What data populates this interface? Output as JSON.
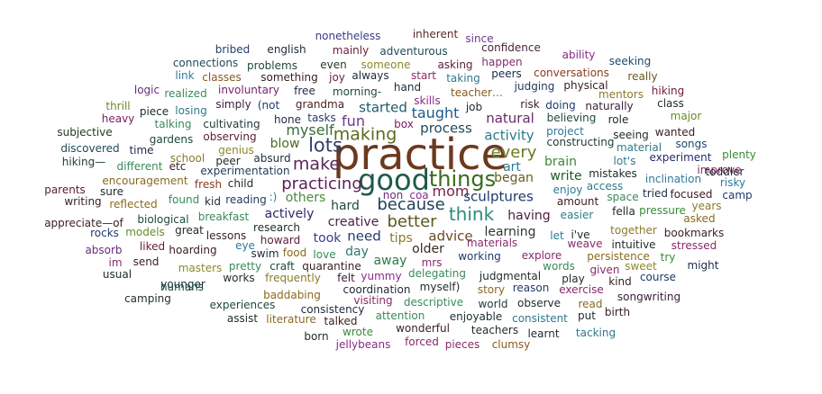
{
  "words": [
    {
      "text": "practice",
      "color": "#6b3a1e"
    },
    {
      "text": "good",
      "color": "#1e5a4a"
    },
    {
      "text": "things",
      "color": "#3a6b1e"
    },
    {
      "text": "lots",
      "color": "#2f3f6b"
    },
    {
      "text": "make",
      "color": "#5a2a5a"
    },
    {
      "text": "making",
      "color": "#5a6b1e"
    },
    {
      "text": "practicing",
      "color": "#5a1e5a"
    },
    {
      "text": "every",
      "color": "#6b7a1e"
    },
    {
      "text": "because",
      "color": "#1e3f5a"
    },
    {
      "text": "better",
      "color": "#5a5a1e"
    },
    {
      "text": "think",
      "color": "#2e8a7a"
    },
    {
      "text": "myself",
      "color": "#3a6b3a"
    },
    {
      "text": "process",
      "color": "#1e4a5a"
    },
    {
      "text": "taught",
      "color": "#1e5a8a"
    },
    {
      "text": "natural",
      "color": "#6a2a6a"
    },
    {
      "text": "fun",
      "color": "#6a3a8a"
    },
    {
      "text": "mom",
      "color": "#7a1e4a"
    },
    {
      "text": "activity",
      "color": "#2e7a8a"
    },
    {
      "text": "blow",
      "color": "#4a6b1e"
    },
    {
      "text": "sculptures",
      "color": "#1e3a6b"
    },
    {
      "text": "brain",
      "color": "#3a8a3a"
    },
    {
      "text": "started",
      "color": "#1e5a6b"
    },
    {
      "text": "having",
      "color": "#4a1e3a"
    },
    {
      "text": "write",
      "color": "#1e5a2a"
    },
    {
      "text": "hard",
      "color": "#1e4a3a"
    },
    {
      "text": "need",
      "color": "#1e3f6b"
    },
    {
      "text": "creative",
      "color": "#4a1e4a"
    },
    {
      "text": "learning",
      "color": "#2a3a2a"
    },
    {
      "text": "advice",
      "color": "#6b4a1e"
    },
    {
      "text": "actively",
      "color": "#2a2a6b"
    },
    {
      "text": "others",
      "color": "#4a8a3a"
    },
    {
      "text": "took",
      "color": "#3a3a8a"
    },
    {
      "text": "tips",
      "color": "#8a7a2a"
    },
    {
      "text": "away",
      "color": "#2e7a4a"
    },
    {
      "text": "began",
      "color": "#6b5a1e"
    },
    {
      "text": "older",
      "color": "#3a2a1e"
    },
    {
      "text": "day",
      "color": "#2e7a6b"
    },
    {
      "text": "art",
      "color": "#2e7a9a"
    },
    {
      "text": "nonetheless",
      "color": "#3a3a8a"
    },
    {
      "text": "inherent",
      "color": "#5a2a2a"
    },
    {
      "text": "since",
      "color": "#6a3a8a"
    },
    {
      "text": "bribed",
      "color": "#1e3f6b"
    },
    {
      "text": "english",
      "color": "#1e2a3a"
    },
    {
      "text": "mainly",
      "color": "#6b1e3a"
    },
    {
      "text": "adventurous",
      "color": "#1e4a5a"
    },
    {
      "text": "confidence",
      "color": "#4a1e3a"
    },
    {
      "text": "ability",
      "color": "#8a2a8a"
    },
    {
      "text": "connections",
      "color": "#1e4a5a"
    },
    {
      "text": "problems",
      "color": "#1e4a3a"
    },
    {
      "text": "even",
      "color": "#2a3a1e"
    },
    {
      "text": "someone",
      "color": "#8a8a2a"
    },
    {
      "text": "asking",
      "color": "#5a1e3a"
    },
    {
      "text": "happen",
      "color": "#8a2a6a"
    },
    {
      "text": "seeking",
      "color": "#1e4a6b"
    },
    {
      "text": "link",
      "color": "#2e7a9a"
    },
    {
      "text": "classes",
      "color": "#8a5a1e"
    },
    {
      "text": "something",
      "color": "#3a1e1e"
    },
    {
      "text": "joy",
      "color": "#6b1e4a"
    },
    {
      "text": "always",
      "color": "#1e2a3a"
    },
    {
      "text": "start",
      "color": "#8a2a6a"
    },
    {
      "text": "taking",
      "color": "#2e7a8a"
    },
    {
      "text": "peers",
      "color": "#1e2a4a"
    },
    {
      "text": "conversations",
      "color": "#8a3a1e"
    },
    {
      "text": "really",
      "color": "#6b5a1e"
    },
    {
      "text": "logic",
      "color": "#6a2a7a"
    },
    {
      "text": "realized",
      "color": "#3a8a5a"
    },
    {
      "text": "involuntary",
      "color": "#7a1e6a"
    },
    {
      "text": "free",
      "color": "#1e2a4a"
    },
    {
      "text": "morning-",
      "color": "#1e4a3a"
    },
    {
      "text": "hand",
      "color": "#1e2a3a"
    },
    {
      "text": "teacher…",
      "color": "#8a5a1e"
    },
    {
      "text": "judging",
      "color": "#1e3a5a"
    },
    {
      "text": "physical",
      "color": "#3a1e1e"
    },
    {
      "text": "mentors",
      "color": "#8a7a2a"
    },
    {
      "text": "hiking",
      "color": "#6a1e3a"
    },
    {
      "text": "simply",
      "color": "#3a1e3a"
    },
    {
      "text": "(not",
      "color": "#1e3a6b"
    },
    {
      "text": "grandma",
      "color": "#4a1e1e"
    },
    {
      "text": "skills",
      "color": "#8a2a8a"
    },
    {
      "text": "job",
      "color": "#1e2a2a"
    },
    {
      "text": "risk",
      "color": "#3a1e1e"
    },
    {
      "text": "doing",
      "color": "#1e3a6b"
    },
    {
      "text": "naturally",
      "color": "#3a1e3a"
    },
    {
      "text": "class",
      "color": "#1e2a2a"
    },
    {
      "text": "thrill",
      "color": "#6a8a2a"
    },
    {
      "text": "piece",
      "color": "#1e2a2a"
    },
    {
      "text": "losing",
      "color": "#2e7a8a"
    },
    {
      "text": "tasks",
      "color": "#2a3a6b"
    },
    {
      "text": "heavy",
      "color": "#7a1e5a"
    },
    {
      "text": "talking",
      "color": "#3a8a5a"
    },
    {
      "text": "cultivating",
      "color": "#1e3a3a"
    },
    {
      "text": "hone",
      "color": "#1e2a4a"
    },
    {
      "text": "box",
      "color": "#7a1e5a"
    },
    {
      "text": "believing",
      "color": "#1e4a3a"
    },
    {
      "text": "role",
      "color": "#1e2a2a"
    },
    {
      "text": "major",
      "color": "#6a8a2a"
    },
    {
      "text": "subjective",
      "color": "#1e3a1e"
    },
    {
      "text": "gardens",
      "color": "#1e4a3a"
    },
    {
      "text": "observing",
      "color": "#5a1e3a"
    },
    {
      "text": "project",
      "color": "#2e7a9a"
    },
    {
      "text": "seeing",
      "color": "#1e2a2a"
    },
    {
      "text": "wanted",
      "color": "#3a1e1e"
    },
    {
      "text": "discovered",
      "color": "#1e4a5a"
    },
    {
      "text": "time",
      "color": "#1e2a4a"
    },
    {
      "text": "genius",
      "color": "#8a8a2a"
    },
    {
      "text": "absurd",
      "color": "#1e2a3a"
    },
    {
      "text": "constructing",
      "color": "#1e3a3a"
    },
    {
      "text": "material",
      "color": "#2e7a8a"
    },
    {
      "text": "songs",
      "color": "#1e4a6b"
    },
    {
      "text": "plenty",
      "color": "#3a8a3a"
    },
    {
      "text": "hiking—",
      "color": "#1e3a3a"
    },
    {
      "text": "school",
      "color": "#8a7a2a"
    },
    {
      "text": "peer",
      "color": "#1e2a2a"
    },
    {
      "text": "lot's",
      "color": "#2e7a9a"
    },
    {
      "text": "experiment",
      "color": "#2a2a6b"
    },
    {
      "text": "improve",
      "color": "#8a2a6a"
    },
    {
      "text": "different",
      "color": "#3a8a5a"
    },
    {
      "text": "etc",
      "color": "#3a1e1e"
    },
    {
      "text": "experimentation",
      "color": "#1e3a5a"
    },
    {
      "text": "mistakes",
      "color": "#1e2a2a"
    },
    {
      "text": "toddler",
      "color": "#1e2a2a"
    },
    {
      "text": "encouragement",
      "color": "#8a6a1e"
    },
    {
      "text": "inclination",
      "color": "#2e7a9a"
    },
    {
      "text": "parents",
      "color": "#5a1e3a"
    },
    {
      "text": "sure",
      "color": "#1e2a2a"
    },
    {
      "text": "fresh",
      "color": "#8a3a1e"
    },
    {
      "text": "child",
      "color": "#1e2a2a"
    },
    {
      "text": ":)",
      "color": "#2e7a9a"
    },
    {
      "text": "coa",
      "color": "#8a2a8a"
    },
    {
      "text": "enjoy",
      "color": "#2e7a9a"
    },
    {
      "text": "access",
      "color": "#2e7a8a"
    },
    {
      "text": "risky",
      "color": "#2e7a9a"
    },
    {
      "text": "writing",
      "color": "#3a1e1e"
    },
    {
      "text": "reflected",
      "color": "#8a6a1e"
    },
    {
      "text": "found",
      "color": "#3a8a5a"
    },
    {
      "text": "kid",
      "color": "#1e2a3a"
    },
    {
      "text": "reading",
      "color": "#1e3a5a"
    },
    {
      "text": "non",
      "color": "#6a2a7a"
    },
    {
      "text": "amount",
      "color": "#3a1e1e"
    },
    {
      "text": "space",
      "color": "#3a8a5a"
    },
    {
      "text": "tried",
      "color": "#1e2a4a"
    },
    {
      "text": "focused",
      "color": "#3a1e1e"
    },
    {
      "text": "camp",
      "color": "#1e3a6b"
    },
    {
      "text": "years",
      "color": "#8a7a2a"
    },
    {
      "text": "appreciate—of",
      "color": "#3a1e1e"
    },
    {
      "text": "biological",
      "color": "#1e4a3a"
    },
    {
      "text": "breakfast",
      "color": "#3a8a5a"
    },
    {
      "text": "research",
      "color": "#1e2a2a"
    },
    {
      "text": "easier",
      "color": "#2e7a8a"
    },
    {
      "text": "fella",
      "color": "#1e2a2a"
    },
    {
      "text": "pressure",
      "color": "#3a8a3a"
    },
    {
      "text": "asked",
      "color": "#8a6a1e"
    },
    {
      "text": "rocks",
      "color": "#1e3a6b"
    },
    {
      "text": "models",
      "color": "#6a8a2a"
    },
    {
      "text": "great",
      "color": "#1e2a2a"
    },
    {
      "text": "lessons",
      "color": "#3a1e1e"
    },
    {
      "text": "howard",
      "color": "#5a1e3a"
    },
    {
      "text": "let",
      "color": "#2e7a9a"
    },
    {
      "text": "i've",
      "color": "#1e2a2a"
    },
    {
      "text": "together",
      "color": "#8a7a2a"
    },
    {
      "text": "bookmarks",
      "color": "#3a1e1e"
    },
    {
      "text": "absorb",
      "color": "#6a2a7a"
    },
    {
      "text": "liked",
      "color": "#6a1e3a"
    },
    {
      "text": "hoarding",
      "color": "#3a1e1e"
    },
    {
      "text": "eye",
      "color": "#2e7a9a"
    },
    {
      "text": "swim",
      "color": "#1e2a3a"
    },
    {
      "text": "food",
      "color": "#8a6a1e"
    },
    {
      "text": "love",
      "color": "#3a8a5a"
    },
    {
      "text": "materials",
      "color": "#8a2a6a"
    },
    {
      "text": "weave",
      "color": "#8a2a6a"
    },
    {
      "text": "intuitive",
      "color": "#1e2a2a"
    },
    {
      "text": "stressed",
      "color": "#8a2a6a"
    },
    {
      "text": "im",
      "color": "#8a2a6a"
    },
    {
      "text": "send",
      "color": "#3a1e1e"
    },
    {
      "text": "pretty",
      "color": "#3a8a5a"
    },
    {
      "text": "craft",
      "color": "#1e4a3a"
    },
    {
      "text": "quarantine",
      "color": "#3a1e1e"
    },
    {
      "text": "mrs",
      "color": "#8a2a6a"
    },
    {
      "text": "working",
      "color": "#1e3a6b"
    },
    {
      "text": "explore",
      "color": "#8a2a6a"
    },
    {
      "text": "persistence",
      "color": "#8a6a1e"
    },
    {
      "text": "try",
      "color": "#3a8a3a"
    },
    {
      "text": "usual",
      "color": "#1e2a2a"
    },
    {
      "text": "masters",
      "color": "#8a8a2a"
    },
    {
      "text": "works",
      "color": "#1e2a2a"
    },
    {
      "text": "yummy",
      "color": "#8a2a8a"
    },
    {
      "text": "words",
      "color": "#3a8a5a"
    },
    {
      "text": "given",
      "color": "#8a2a6a"
    },
    {
      "text": "sweet",
      "color": "#8a8a2a"
    },
    {
      "text": "might",
      "color": "#1e2a4a"
    },
    {
      "text": "younger",
      "color": "#1e2a4a"
    },
    {
      "text": "frequently",
      "color": "#8a7a2a"
    },
    {
      "text": "delegating",
      "color": "#3a8a5a"
    },
    {
      "text": "judgmental",
      "color": "#1e2a2a"
    },
    {
      "text": "play",
      "color": "#1e2a2a"
    },
    {
      "text": "course",
      "color": "#1e3a6b"
    },
    {
      "text": "humans",
      "color": "#1e4a3a"
    },
    {
      "text": "felt",
      "color": "#3a1e3a"
    },
    {
      "text": "myself)",
      "color": "#1e2a2a"
    },
    {
      "text": "story",
      "color": "#8a6a1e"
    },
    {
      "text": "reason",
      "color": "#1e3a6b"
    },
    {
      "text": "exercise",
      "color": "#8a2a6a"
    },
    {
      "text": "kind",
      "color": "#3a1e1e"
    },
    {
      "text": "camping",
      "color": "#1e2a2a"
    },
    {
      "text": "baddabing",
      "color": "#8a6a1e"
    },
    {
      "text": "coordination",
      "color": "#1e2a3a"
    },
    {
      "text": "songwriting",
      "color": "#3a1e3a"
    },
    {
      "text": "experiences",
      "color": "#1e4a3a"
    },
    {
      "text": "consistency",
      "color": "#1e2a3a"
    },
    {
      "text": "visiting",
      "color": "#8a2a6a"
    },
    {
      "text": "descriptive",
      "color": "#3a8a5a"
    },
    {
      "text": "world",
      "color": "#1e3a3a"
    },
    {
      "text": "observe",
      "color": "#1e2a2a"
    },
    {
      "text": "read",
      "color": "#8a6a1e"
    },
    {
      "text": "birth",
      "color": "#3a1e1e"
    },
    {
      "text": "assist",
      "color": "#1e2a2a"
    },
    {
      "text": "literature",
      "color": "#8a6a1e"
    },
    {
      "text": "talked",
      "color": "#3a1e1e"
    },
    {
      "text": "attention",
      "color": "#3a8a5a"
    },
    {
      "text": "enjoyable",
      "color": "#1e2a2a"
    },
    {
      "text": "consistent",
      "color": "#2e7a8a"
    },
    {
      "text": "put",
      "color": "#1e2a2a"
    },
    {
      "text": "wrote",
      "color": "#3a8a3a"
    },
    {
      "text": "wonderful",
      "color": "#3a1e1e"
    },
    {
      "text": "teachers",
      "color": "#1e2a2a"
    },
    {
      "text": "learnt",
      "color": "#1e2a2a"
    },
    {
      "text": "tacking",
      "color": "#2e7a8a"
    },
    {
      "text": "born",
      "color": "#1e2a2a"
    },
    {
      "text": "forced",
      "color": "#8a2a6a"
    },
    {
      "text": "jellybeans",
      "color": "#8a2a8a"
    },
    {
      "text": "pieces",
      "color": "#8a2a6a"
    },
    {
      "text": "clumsy",
      "color": "#8a5a1e"
    }
  ]
}
